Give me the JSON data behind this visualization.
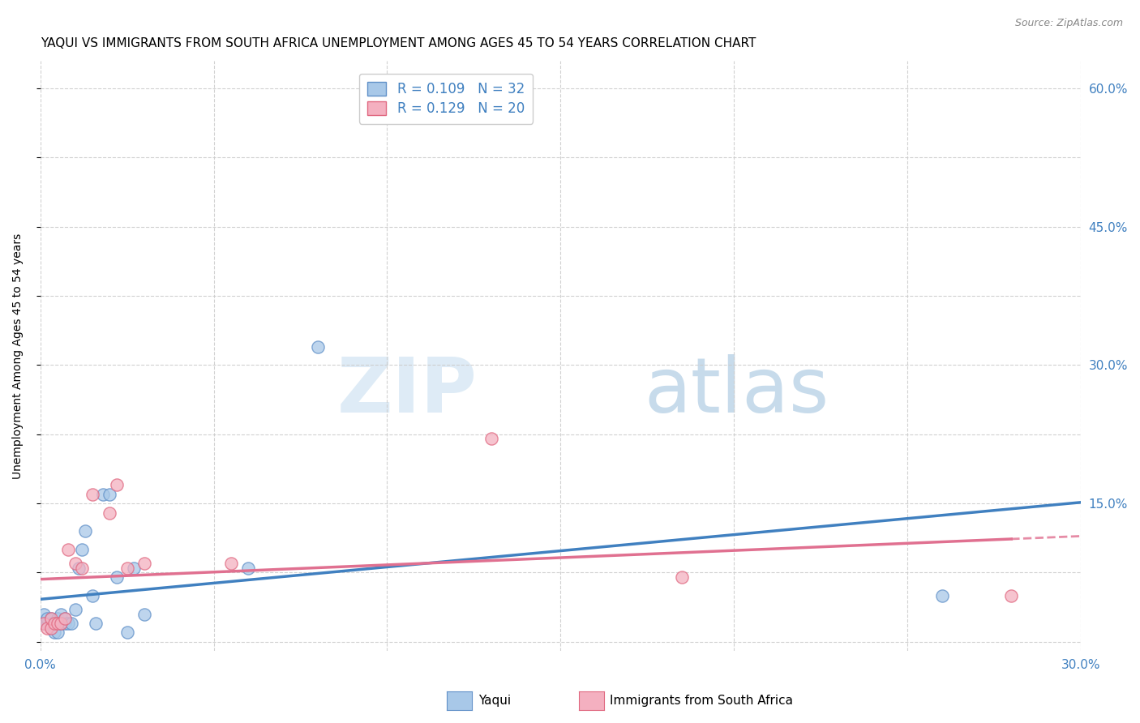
{
  "title": "YAQUI VS IMMIGRANTS FROM SOUTH AFRICA UNEMPLOYMENT AMONG AGES 45 TO 54 YEARS CORRELATION CHART",
  "source": "Source: ZipAtlas.com",
  "ylabel": "Unemployment Among Ages 45 to 54 years",
  "xlim": [
    0.0,
    0.3
  ],
  "ylim": [
    -0.01,
    0.63
  ],
  "xticks": [
    0.0,
    0.05,
    0.1,
    0.15,
    0.2,
    0.25,
    0.3
  ],
  "xtick_labels": [
    "0.0%",
    "",
    "",
    "",
    "",
    "",
    "30.0%"
  ],
  "yticks": [
    0.0,
    0.075,
    0.15,
    0.225,
    0.3,
    0.375,
    0.45,
    0.525,
    0.6
  ],
  "ytick_labels_right": [
    "",
    "",
    "15.0%",
    "",
    "30.0%",
    "",
    "45.0%",
    "",
    "60.0%"
  ],
  "yaqui_color": "#a8c8e8",
  "immigrants_color": "#f4b0c0",
  "yaqui_edge_color": "#6090c8",
  "immigrants_edge_color": "#e06880",
  "yaqui_line_color": "#4080c0",
  "immigrants_line_color": "#e07090",
  "r_yaqui": 0.109,
  "n_yaqui": 32,
  "r_immigrants": 0.129,
  "n_immigrants": 20,
  "legend_label_yaqui": "Yaqui",
  "legend_label_immigrants": "Immigrants from South Africa",
  "watermark_zip": "ZIP",
  "watermark_atlas": "atlas",
  "background_color": "#ffffff",
  "yaqui_x": [
    0.001,
    0.001,
    0.002,
    0.002,
    0.003,
    0.003,
    0.003,
    0.004,
    0.004,
    0.005,
    0.005,
    0.006,
    0.006,
    0.007,
    0.007,
    0.008,
    0.009,
    0.01,
    0.011,
    0.012,
    0.013,
    0.015,
    0.016,
    0.018,
    0.02,
    0.022,
    0.025,
    0.027,
    0.03,
    0.06,
    0.08,
    0.26
  ],
  "yaqui_y": [
    0.02,
    0.03,
    0.02,
    0.025,
    0.015,
    0.02,
    0.025,
    0.01,
    0.02,
    0.01,
    0.025,
    0.02,
    0.03,
    0.02,
    0.025,
    0.02,
    0.02,
    0.035,
    0.08,
    0.1,
    0.12,
    0.05,
    0.02,
    0.16,
    0.16,
    0.07,
    0.01,
    0.08,
    0.03,
    0.08,
    0.32,
    0.05
  ],
  "immigrants_x": [
    0.001,
    0.002,
    0.003,
    0.003,
    0.004,
    0.005,
    0.006,
    0.007,
    0.008,
    0.01,
    0.012,
    0.015,
    0.02,
    0.022,
    0.025,
    0.03,
    0.055,
    0.13,
    0.185,
    0.28
  ],
  "immigrants_y": [
    0.02,
    0.015,
    0.015,
    0.025,
    0.02,
    0.02,
    0.02,
    0.025,
    0.1,
    0.085,
    0.08,
    0.16,
    0.14,
    0.17,
    0.08,
    0.085,
    0.085,
    0.22,
    0.07,
    0.05
  ],
  "title_fontsize": 11,
  "axis_label_fontsize": 10,
  "tick_fontsize": 11,
  "legend_fontsize": 12,
  "marker_size": 120
}
